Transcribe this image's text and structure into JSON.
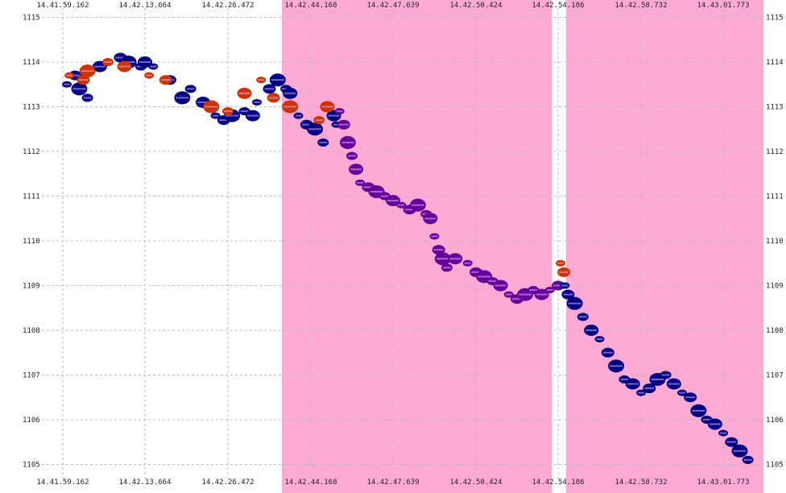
{
  "chart_data": {
    "type": "scatter",
    "title": "",
    "xlabel": "",
    "ylabel": "",
    "ylim": [
      1104.9,
      1115.1
    ],
    "grid": true,
    "x_tick_labels": [
      "14.41.59.162",
      "14.42.13.664",
      "14.42.26.472",
      "14.42.44.168",
      "14.42.47.639",
      "14.42.50.424",
      "14.42.54.186",
      "14.42.58.732",
      "14.43.01.773"
    ],
    "y_ticks": [
      1105,
      1106,
      1107,
      1108,
      1109,
      1110,
      1111,
      1112,
      1113,
      1114,
      1115
    ],
    "highlight_bands": [
      {
        "from_tick": 3,
        "to_tick": 6,
        "color": "#ffaad4"
      },
      {
        "from_tick": 6,
        "to_tick": 8,
        "color": "#ffaad4"
      }
    ],
    "series": [
      {
        "color": "#000080",
        "points": [
          [
            0.05,
            1113.5
          ],
          [
            0.15,
            1113.7
          ],
          [
            0.2,
            1113.4
          ],
          [
            0.3,
            1113.2
          ],
          [
            0.45,
            1113.9
          ],
          [
            0.55,
            1114.0
          ],
          [
            0.7,
            1114.1
          ],
          [
            0.8,
            1114.0
          ],
          [
            0.95,
            1113.9
          ],
          [
            1.0,
            1114.0
          ],
          [
            1.1,
            1113.9
          ],
          [
            1.3,
            1113.6
          ],
          [
            1.45,
            1113.2
          ],
          [
            1.55,
            1113.4
          ],
          [
            1.7,
            1113.1
          ],
          [
            1.85,
            1112.8
          ],
          [
            1.95,
            1112.7
          ],
          [
            2.05,
            1112.8
          ],
          [
            2.2,
            1112.9
          ],
          [
            2.3,
            1112.8
          ],
          [
            2.35,
            1113.1
          ],
          [
            2.5,
            1113.4
          ],
          [
            2.6,
            1113.6
          ],
          [
            2.7,
            1113.4
          ],
          [
            2.75,
            1113.3
          ],
          [
            2.85,
            1112.8
          ],
          [
            2.95,
            1112.6
          ],
          [
            3.05,
            1112.5
          ],
          [
            3.15,
            1112.2
          ],
          [
            3.28,
            1112.8
          ],
          [
            3.31,
            1112.6
          ]
        ]
      },
      {
        "color": "#cc3300",
        "points": [
          [
            0.08,
            1113.7
          ],
          [
            0.25,
            1113.6
          ],
          [
            0.3,
            1113.8
          ],
          [
            0.55,
            1114.0
          ],
          [
            0.75,
            1113.9
          ],
          [
            1.05,
            1113.7
          ],
          [
            1.25,
            1113.6
          ],
          [
            1.8,
            1113.0
          ],
          [
            2.0,
            1112.9
          ],
          [
            2.2,
            1113.3
          ],
          [
            2.4,
            1113.6
          ],
          [
            2.55,
            1113.2
          ],
          [
            2.75,
            1113.0
          ],
          [
            3.1,
            1112.7
          ],
          [
            3.2,
            1113.0
          ],
          [
            6.03,
            1109.5
          ],
          [
            6.07,
            1109.3
          ]
        ]
      },
      {
        "color": "#660099",
        "points": [
          [
            3.35,
            1112.9
          ],
          [
            3.4,
            1112.6
          ],
          [
            3.45,
            1112.2
          ],
          [
            3.5,
            1111.9
          ],
          [
            3.55,
            1111.6
          ],
          [
            3.6,
            1111.3
          ],
          [
            3.7,
            1111.2
          ],
          [
            3.8,
            1111.1
          ],
          [
            3.9,
            1111.0
          ],
          [
            4.0,
            1110.9
          ],
          [
            4.1,
            1110.8
          ],
          [
            4.2,
            1110.7
          ],
          [
            4.3,
            1110.8
          ],
          [
            4.4,
            1110.6
          ],
          [
            4.45,
            1110.5
          ],
          [
            4.5,
            1110.1
          ],
          [
            4.55,
            1109.8
          ],
          [
            4.6,
            1109.6
          ],
          [
            4.65,
            1109.4
          ],
          [
            4.75,
            1109.6
          ],
          [
            4.9,
            1109.5
          ],
          [
            5.0,
            1109.3
          ],
          [
            5.1,
            1109.2
          ],
          [
            5.2,
            1109.1
          ],
          [
            5.3,
            1109.0
          ],
          [
            5.4,
            1108.8
          ],
          [
            5.5,
            1108.7
          ],
          [
            5.6,
            1108.8
          ],
          [
            5.7,
            1108.9
          ],
          [
            5.8,
            1108.8
          ],
          [
            5.9,
            1108.9
          ],
          [
            6.0,
            1109.0
          ]
        ]
      },
      {
        "color": "#000080",
        "points": [
          [
            6.08,
            1109.0
          ],
          [
            6.12,
            1108.8
          ],
          [
            6.2,
            1108.6
          ],
          [
            6.3,
            1108.3
          ],
          [
            6.4,
            1108.0
          ],
          [
            6.5,
            1107.8
          ],
          [
            6.6,
            1107.5
          ],
          [
            6.7,
            1107.2
          ],
          [
            6.8,
            1106.9
          ],
          [
            6.9,
            1106.8
          ],
          [
            7.0,
            1106.6
          ],
          [
            7.1,
            1106.7
          ],
          [
            7.2,
            1106.9
          ],
          [
            7.3,
            1107.0
          ],
          [
            7.4,
            1106.8
          ],
          [
            7.5,
            1106.6
          ],
          [
            7.6,
            1106.5
          ],
          [
            7.7,
            1106.2
          ],
          [
            7.8,
            1106.0
          ],
          [
            7.9,
            1105.9
          ],
          [
            8.0,
            1105.7
          ],
          [
            8.1,
            1105.5
          ],
          [
            8.2,
            1105.3
          ],
          [
            8.3,
            1105.1
          ]
        ]
      }
    ]
  }
}
